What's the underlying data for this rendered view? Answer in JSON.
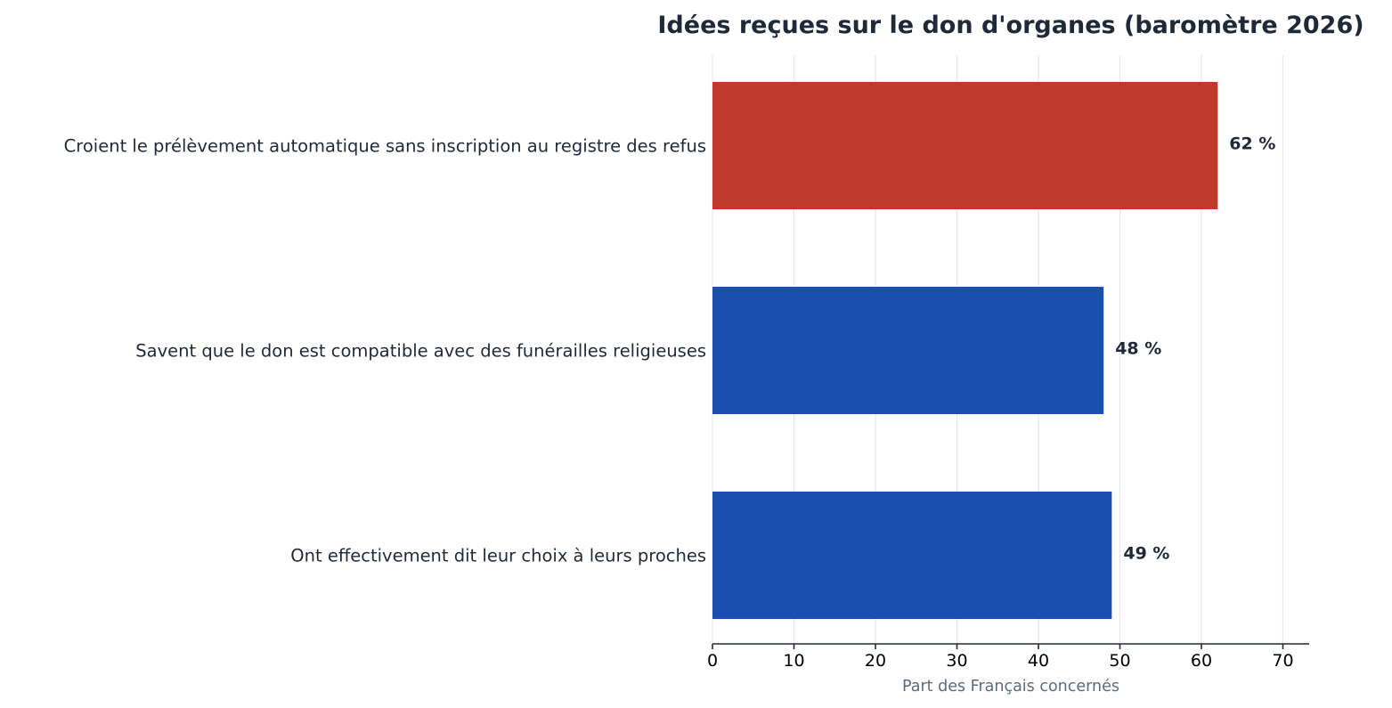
{
  "chart_data": {
    "type": "bar",
    "orientation": "horizontal",
    "title": "Idées reçues sur le don d'organes (baromètre 2026)",
    "xlabel": "Part des Français concernés",
    "ylabel": "",
    "xlim": [
      0,
      73
    ],
    "xticks": [
      0,
      10,
      20,
      30,
      40,
      50,
      60,
      70
    ],
    "grid": true,
    "categories": [
      "Croient le prélèvement automatique sans inscription au registre des refus",
      "Savent que le don est compatible avec des funérailles religieuses",
      "Ont effectivement dit leur choix à leurs proches"
    ],
    "values": [
      62,
      48,
      49
    ],
    "value_labels": [
      "62 %",
      "48 %",
      "49 %"
    ],
    "colors": [
      "#c0392b",
      "#1a4fb0",
      "#1a4fb0"
    ]
  }
}
